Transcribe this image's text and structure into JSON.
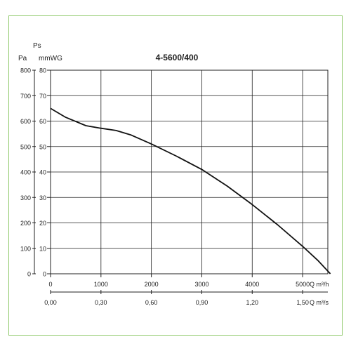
{
  "chart_data": {
    "type": "line",
    "title": "4-5600/400",
    "left_axis_top_label": "Ps",
    "left_axis_unit_pa": "Pa",
    "left_axis_unit_mmwg": "mmWG",
    "pa_ticks": [
      "800",
      "700",
      "600",
      "500",
      "400",
      "300",
      "200",
      "100",
      "0"
    ],
    "mmwg_ticks": [
      "80",
      "70",
      "60",
      "50",
      "40",
      "30",
      "20",
      "10",
      "0"
    ],
    "x_ticks_m3h": [
      "0",
      "1000",
      "2000",
      "3000",
      "4000",
      "5000"
    ],
    "x_unit_m3h": "Q m³/h",
    "x_ticks_m3s": [
      "0,00",
      "0,30",
      "0,60",
      "0,90",
      "1,20",
      "1,50"
    ],
    "x_unit_m3s": "Q m³/s",
    "xlim_m3h": [
      0,
      5500
    ],
    "ylim_pa": [
      0,
      800
    ],
    "grid": true,
    "series": [
      {
        "x": [
          0,
          300,
          700,
          1000,
          1300,
          1600,
          2000,
          2500,
          3000,
          3500,
          4000,
          4500,
          5000,
          5300,
          5550
        ],
        "y": [
          650,
          615,
          582,
          572,
          563,
          545,
          510,
          462,
          410,
          345,
          272,
          193,
          108,
          53,
          0
        ]
      }
    ]
  }
}
